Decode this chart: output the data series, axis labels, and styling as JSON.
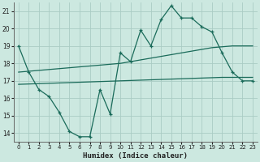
{
  "xlabel": "Humidex (Indice chaleur)",
  "xlim": [
    -0.5,
    23.5
  ],
  "ylim": [
    13.5,
    21.5
  ],
  "yticks": [
    14,
    15,
    16,
    17,
    18,
    19,
    20,
    21
  ],
  "xticks": [
    0,
    1,
    2,
    3,
    4,
    5,
    6,
    7,
    8,
    9,
    10,
    11,
    12,
    13,
    14,
    15,
    16,
    17,
    18,
    19,
    20,
    21,
    22,
    23
  ],
  "bg_color": "#cce8e0",
  "grid_color": "#aaccC4",
  "line_color": "#1a6b5a",
  "line1_x": [
    0,
    1,
    2,
    3,
    4,
    5,
    6,
    7,
    8,
    9,
    10,
    11,
    12,
    13,
    14,
    15,
    16,
    17,
    18,
    19,
    20,
    21,
    22,
    23
  ],
  "line1_y": [
    19.0,
    17.5,
    16.5,
    16.1,
    15.2,
    14.1,
    13.8,
    13.8,
    16.5,
    15.1,
    18.6,
    18.1,
    19.9,
    19.0,
    20.5,
    21.3,
    20.6,
    20.6,
    20.1,
    19.8,
    18.6,
    17.5,
    17.0,
    17.0
  ],
  "line2_x": [
    0,
    1,
    2,
    3,
    4,
    5,
    6,
    7,
    8,
    9,
    10,
    11,
    12,
    13,
    14,
    15,
    16,
    17,
    18,
    19,
    20,
    21,
    22,
    23
  ],
  "line2_y": [
    17.5,
    17.55,
    17.6,
    17.65,
    17.7,
    17.75,
    17.8,
    17.85,
    17.9,
    17.95,
    18.0,
    18.1,
    18.2,
    18.3,
    18.4,
    18.5,
    18.6,
    18.7,
    18.8,
    18.9,
    18.95,
    19.0,
    19.0,
    19.0
  ],
  "line3_x": [
    0,
    1,
    2,
    3,
    4,
    5,
    6,
    7,
    8,
    9,
    10,
    11,
    12,
    13,
    14,
    15,
    16,
    17,
    18,
    19,
    20,
    21,
    22,
    23
  ],
  "line3_y": [
    16.8,
    16.82,
    16.84,
    16.86,
    16.88,
    16.9,
    16.92,
    16.94,
    16.96,
    16.98,
    17.0,
    17.02,
    17.04,
    17.06,
    17.08,
    17.1,
    17.12,
    17.14,
    17.16,
    17.18,
    17.2,
    17.2,
    17.2,
    17.2
  ]
}
